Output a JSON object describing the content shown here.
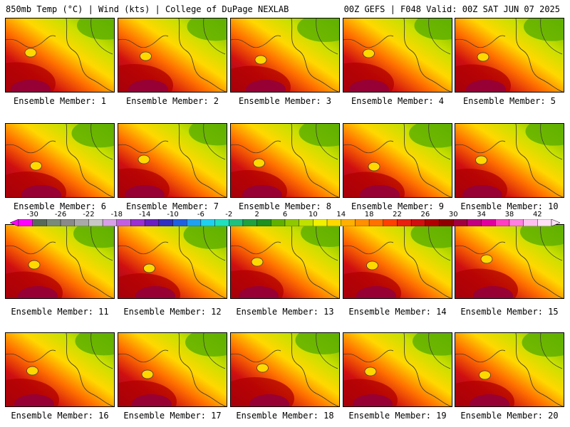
{
  "header": {
    "left": "850mb Temp (°C) | Wind (kts) | College of DuPage NEXLAB",
    "right": "00Z GEFS | F048 Valid: 00Z SAT JUN 07 2025"
  },
  "members": [
    "Ensemble Member: 1",
    "Ensemble Member: 2",
    "Ensemble Member: 3",
    "Ensemble Member: 4",
    "Ensemble Member: 5",
    "Ensemble Member: 6",
    "Ensemble Member: 7",
    "Ensemble Member: 8",
    "Ensemble Member: 9",
    "Ensemble Member: 10",
    "Ensemble Member: 11",
    "Ensemble Member: 12",
    "Ensemble Member: 13",
    "Ensemble Member: 14",
    "Ensemble Member: 15",
    "Ensemble Member: 16",
    "Ensemble Member: 17",
    "Ensemble Member: 18",
    "Ensemble Member: 19",
    "Ensemble Member: 20"
  ],
  "colorbar": {
    "tick_labels": [
      "-30",
      "-26",
      "-22",
      "-18",
      "-14",
      "-10",
      "-6",
      "-2",
      "2",
      "6",
      "10",
      "14",
      "18",
      "22",
      "26",
      "30",
      "34",
      "38",
      "42"
    ],
    "colors": [
      "#ff00ff",
      "#5a6a5a",
      "#7a8a7a",
      "#8a8a8a",
      "#a9a9a9",
      "#c8c8c8",
      "#d8a0e8",
      "#c060e0",
      "#9a30d0",
      "#6a20c0",
      "#3030c0",
      "#2060e0",
      "#20a0f0",
      "#20d0f0",
      "#20e0c0",
      "#20c080",
      "#20a040",
      "#209020",
      "#60b000",
      "#90c800",
      "#c0e000",
      "#f0f000",
      "#ffd800",
      "#ffb000",
      "#ff9000",
      "#ff7000",
      "#ff4000",
      "#e82010",
      "#d01010",
      "#b00000",
      "#900000",
      "#a00040",
      "#c00080",
      "#e000a0",
      "#ff40c0",
      "#ff80e0",
      "#ffc0f0",
      "#ffe0f8"
    ]
  }
}
